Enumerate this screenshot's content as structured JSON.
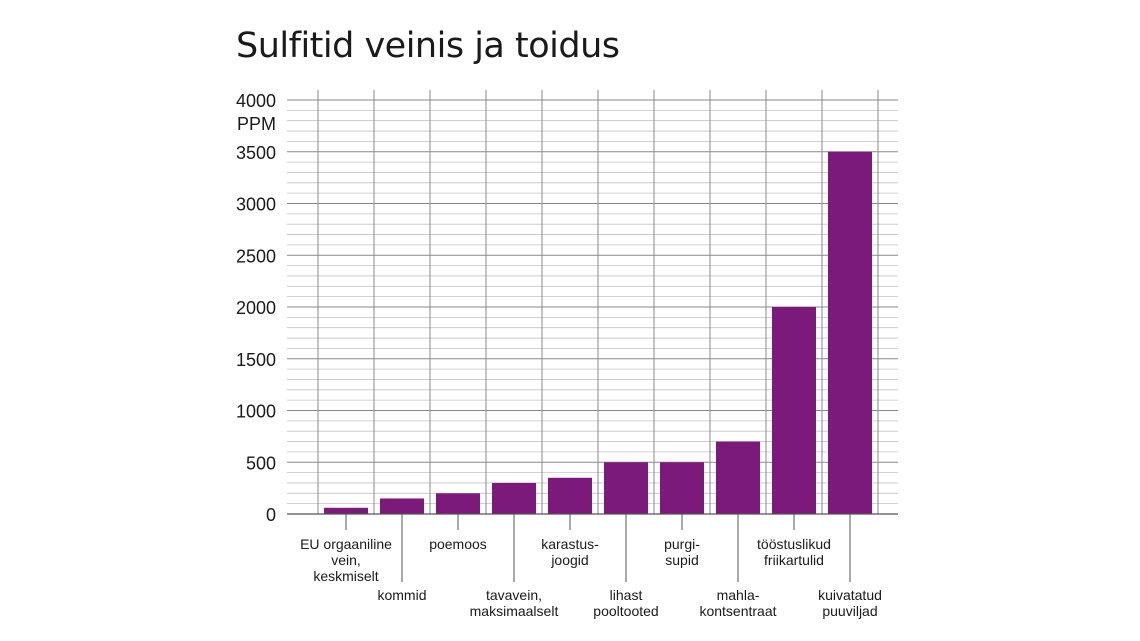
{
  "title": "Sulfitid veinis ja toidus",
  "chart_data": {
    "type": "bar",
    "title": "Sulfitid veinis ja toidus",
    "ylabel": "PPM",
    "ylim": [
      0,
      4000
    ],
    "yticks": [
      0,
      500,
      1000,
      1500,
      2000,
      2500,
      3000,
      3500,
      4000
    ],
    "grid": true,
    "categories": [
      "EU orgaaniline vein, keskmiselt",
      "kommid",
      "poemoos",
      "tavavein, maksimaalselt",
      "karastus-joogid",
      "lihast pooltooted",
      "purgi-supid",
      "mahla-kontsentraat",
      "tööstuslikud friikartulid",
      "kuivatatud puuviljad"
    ],
    "category_label_lines": [
      [
        "EU orgaaniline",
        "vein,",
        "keskmiselt"
      ],
      [
        "kommid"
      ],
      [
        "poemoos"
      ],
      [
        "tavavein,",
        "maksimaalselt"
      ],
      [
        "karastus-",
        "joogid"
      ],
      [
        "lihast",
        "pooltooted"
      ],
      [
        "purgi-",
        "supid"
      ],
      [
        "mahla-",
        "kontsentraat"
      ],
      [
        "tööstuslikud",
        "friikartulid"
      ],
      [
        "kuivatatud",
        "puuviljad"
      ]
    ],
    "values": [
      60,
      150,
      200,
      300,
      350,
      500,
      500,
      700,
      2000,
      3500
    ],
    "bar_color": "#7b1a7a"
  }
}
